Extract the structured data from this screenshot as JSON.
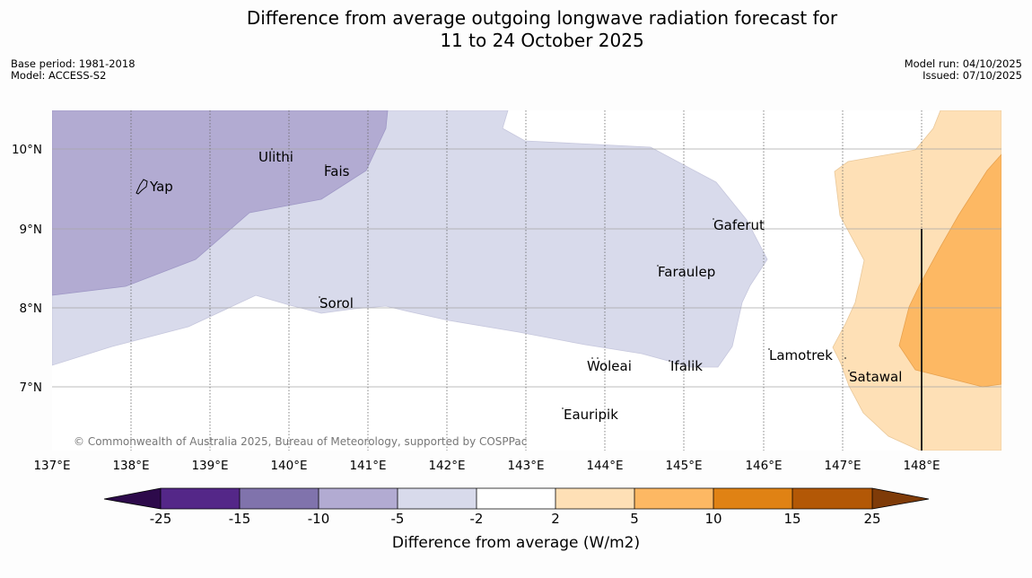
{
  "title": {
    "line1": "Difference from average outgoing longwave radiation forecast for",
    "line2": "11 to 24 October 2025"
  },
  "meta_left": {
    "base_period": "Base period: 1981-2018",
    "model": "Model: ACCESS-S2"
  },
  "meta_right": {
    "model_run": "Model run: 04/10/2025",
    "issued": "Issued: 07/10/2025"
  },
  "map": {
    "lat_labels": [
      "10°N",
      "9°N",
      "8°N",
      "7°N"
    ],
    "lon_labels": [
      "137°E",
      "138°E",
      "139°E",
      "140°E",
      "141°E",
      "142°E",
      "143°E",
      "144°E",
      "145°E",
      "146°E",
      "147°E",
      "148°E"
    ],
    "places": {
      "yap": "Yap",
      "ulithi": "Ulithi",
      "fais": "Fais",
      "gaferut": "Gaferut",
      "faraulep": "Faraulep",
      "sorol": "Sorol",
      "lamotrek": "Lamotrek",
      "woleai": "Woleai",
      "ifalik": "Ifalik",
      "satawal": "Satawal",
      "eauripik": "Eauripik"
    },
    "copyright": "© Commonwealth of Australia 2025, Bureau of Meteorology, supported by COSPPac"
  },
  "colorbar": {
    "title": "Difference from average (W/m2)",
    "labels": [
      "-25",
      "-15",
      "-10",
      "-5",
      "-2",
      "2",
      "5",
      "10",
      "15",
      "25"
    ],
    "colors": {
      "below_min": "#2d0a4b",
      "c1": "#542788",
      "c2": "#8073ac",
      "c3": "#b2abd2",
      "c4": "#d8daeb",
      "c5": "#ffffff",
      "c6": "#fee0b6",
      "c7": "#fdb863",
      "c8": "#e08214",
      "c9": "#b35806",
      "above_max": "#7f3b08"
    }
  }
}
